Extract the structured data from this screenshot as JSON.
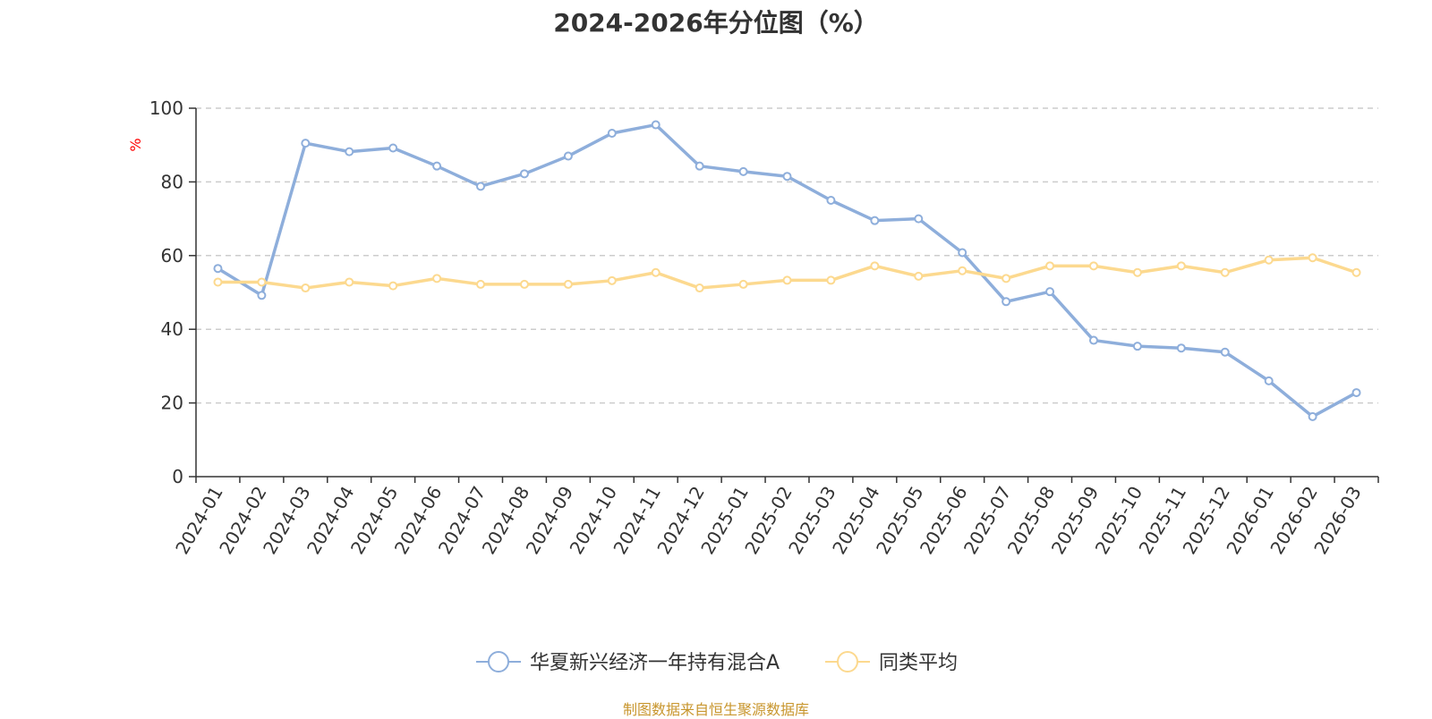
{
  "chart_data": {
    "type": "line",
    "title": "2024-2026年分位图（%）",
    "ylabel": "%",
    "xlabel": "",
    "ylim": [
      0,
      100
    ],
    "yticks": [
      0,
      20,
      40,
      60,
      80,
      100
    ],
    "grid": "horizontal dashed",
    "legend_position": "bottom-center",
    "categories": [
      "2024-01",
      "2024-02",
      "2024-03",
      "2024-04",
      "2024-05",
      "2024-06",
      "2024-07",
      "2024-08",
      "2024-09",
      "2024-10",
      "2024-11",
      "2024-12",
      "2025-01",
      "2025-02",
      "2025-03",
      "2025-04",
      "2025-05",
      "2025-06",
      "2025-07",
      "2025-08",
      "2025-09",
      "2025-10",
      "2025-11",
      "2025-12",
      "2026-01",
      "2026-02",
      "2026-03"
    ],
    "series": [
      {
        "name": "华夏新兴经济一年持有混合A",
        "color": "#8eaedb",
        "values": [
          56.5,
          49.2,
          90.5,
          88.2,
          89.2,
          84.3,
          78.8,
          82.2,
          87.0,
          93.2,
          95.5,
          84.3,
          82.8,
          81.5,
          75.0,
          69.5,
          70.0,
          60.8,
          47.5,
          50.2,
          37.0,
          35.4,
          34.9,
          33.8,
          26.0,
          16.3,
          22.8
        ]
      },
      {
        "name": "同类平均",
        "color": "#fcd98f",
        "values": [
          52.8,
          52.8,
          51.2,
          52.8,
          51.8,
          53.8,
          52.2,
          52.2,
          52.2,
          53.2,
          55.4,
          51.2,
          52.2,
          53.3,
          53.3,
          57.2,
          54.4,
          55.9,
          53.8,
          57.2,
          57.2,
          55.4,
          57.2,
          55.4,
          58.8,
          59.4,
          55.4
        ]
      }
    ]
  },
  "footer": {
    "source": "制图数据来自恒生聚源数据库"
  },
  "style": {
    "axis_color": "#333333",
    "grid_color": "#cccccc",
    "ylabel_color": "#ff0000",
    "source_color": "#c8962e"
  }
}
